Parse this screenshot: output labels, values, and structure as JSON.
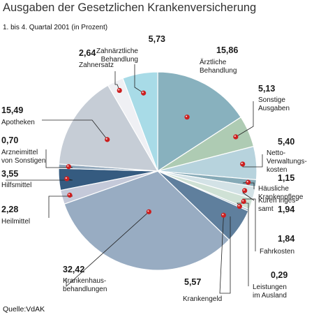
{
  "header": {
    "title": "Ausgaben der Gesetzlichen Krankenversicherung",
    "subtitle": "1. bis 4. Quartal 2001 (in Prozent)"
  },
  "footer": {
    "source": "Quelle:VdAK"
  },
  "chart_data": {
    "type": "pie",
    "title": "Ausgaben der Gesetzlichen Krankenversicherung",
    "subtitle": "1. bis 4. Quartal 2001 (in Prozent)",
    "unit": "Prozent",
    "slices": [
      {
        "name": "Ärztliche Behandlung",
        "label_lines": [
          "Ärztliche",
          "Behandlung"
        ],
        "value": 15.86,
        "display": "15,86",
        "color": "#88b1be"
      },
      {
        "name": "Sonstige Ausgaben",
        "label_lines": [
          "Sonstige",
          "Ausgaben"
        ],
        "value": 5.13,
        "display": "5,13",
        "color": "#aecbb3"
      },
      {
        "name": "Netto-Verwaltungskosten",
        "label_lines": [
          "Netto-",
          "Verwaltungs-",
          "kosten"
        ],
        "value": 5.4,
        "display": "5,40",
        "color": "#b7d3dd"
      },
      {
        "name": "Häusliche Krankenpflege",
        "label_lines": [
          "Häusliche",
          "Krankenpflege"
        ],
        "value": 1.15,
        "display": "1,15",
        "color": "#86aab7"
      },
      {
        "name": "Kuren insgesamt",
        "label_lines": [
          "Kuren inges-",
          "samt"
        ],
        "value": 1.94,
        "display": "1,94",
        "color": "#d3e2e6"
      },
      {
        "name": "Fahrkosten",
        "label_lines": [
          "Fahrkosten"
        ],
        "value": 1.84,
        "display": "1,84",
        "color": "#cfe1d5"
      },
      {
        "name": "Leistungen im Ausland",
        "label_lines": [
          "Leistungen",
          "im Ausland"
        ],
        "value": 0.29,
        "display": "0,29",
        "color": "#9db8c6"
      },
      {
        "name": "Krankengeld",
        "label_lines": [
          "Krankengeld"
        ],
        "value": 5.57,
        "display": "5,57",
        "color": "#5f7f9d"
      },
      {
        "name": "Krankenhausbehandlungen",
        "label_lines": [
          "Krankenhaus-",
          "behandlungen"
        ],
        "value": 32.42,
        "display": "32,42",
        "color": "#98acc2"
      },
      {
        "name": "Heilmittel",
        "label_lines": [
          "Heilmittel"
        ],
        "value": 2.28,
        "display": "2,28",
        "color": "#c4c9d9"
      },
      {
        "name": "Hilfsmittel",
        "label_lines": [
          "Hilfsmittel"
        ],
        "value": 3.55,
        "display": "3,55",
        "color": "#355b80"
      },
      {
        "name": "Arzneimittel von Sonstigen",
        "label_lines": [
          "Arzneimittel",
          "von Sonstigen"
        ],
        "value": 0.7,
        "display": "0,70",
        "color": "#8fa6ba"
      },
      {
        "name": "Apotheken",
        "label_lines": [
          "Apotheken"
        ],
        "value": 15.49,
        "display": "15,49",
        "color": "#c6cdd6"
      },
      {
        "name": "Zahnersatz",
        "label_lines": [
          "Zahnersatz"
        ],
        "value": 2.64,
        "display": "2,64",
        "color": "#eff0f4"
      },
      {
        "name": "Zahnärztliche Behandlung",
        "label_lines": [
          "Zahnärztliche",
          "Behandlung"
        ],
        "value": 5.73,
        "display": "5,73",
        "color": "#a8dbe7"
      }
    ],
    "marker_color": "#cc1f1f"
  }
}
